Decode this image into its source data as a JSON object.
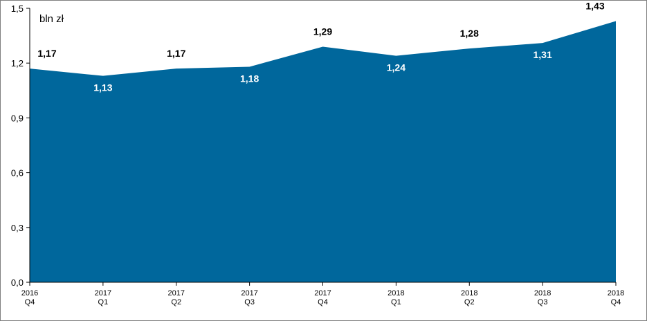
{
  "chart_data": {
    "type": "area",
    "unit_label": "bln zł",
    "categories": [
      [
        "2016",
        "Q4"
      ],
      [
        "2017",
        "Q1"
      ],
      [
        "2017",
        "Q2"
      ],
      [
        "2017",
        "Q3"
      ],
      [
        "2017",
        "Q4"
      ],
      [
        "2018",
        "Q1"
      ],
      [
        "2018",
        "Q2"
      ],
      [
        "2018",
        "Q3"
      ],
      [
        "2018",
        "Q4"
      ]
    ],
    "values": [
      1.17,
      1.13,
      1.17,
      1.18,
      1.29,
      1.24,
      1.28,
      1.31,
      1.43
    ],
    "value_labels": [
      "1,17",
      "1,13",
      "1,17",
      "1,18",
      "1,29",
      "1,24",
      "1,28",
      "1,31",
      "1,43"
    ],
    "label_positions": [
      "above",
      "inside",
      "above",
      "inside",
      "above",
      "inside",
      "above",
      "inside",
      "above"
    ],
    "ylim": [
      0,
      1.5
    ],
    "yticks": [
      0,
      0.3,
      0.6,
      0.9,
      1.2,
      1.5
    ],
    "ytick_labels": [
      "0,0",
      "0,3",
      "0,6",
      "0,9",
      "1,2",
      "1,5"
    ],
    "grid": false,
    "legend": "none",
    "colors": {
      "area": "#00679c",
      "label_above": "#000000",
      "label_inside": "#ffffff"
    }
  }
}
